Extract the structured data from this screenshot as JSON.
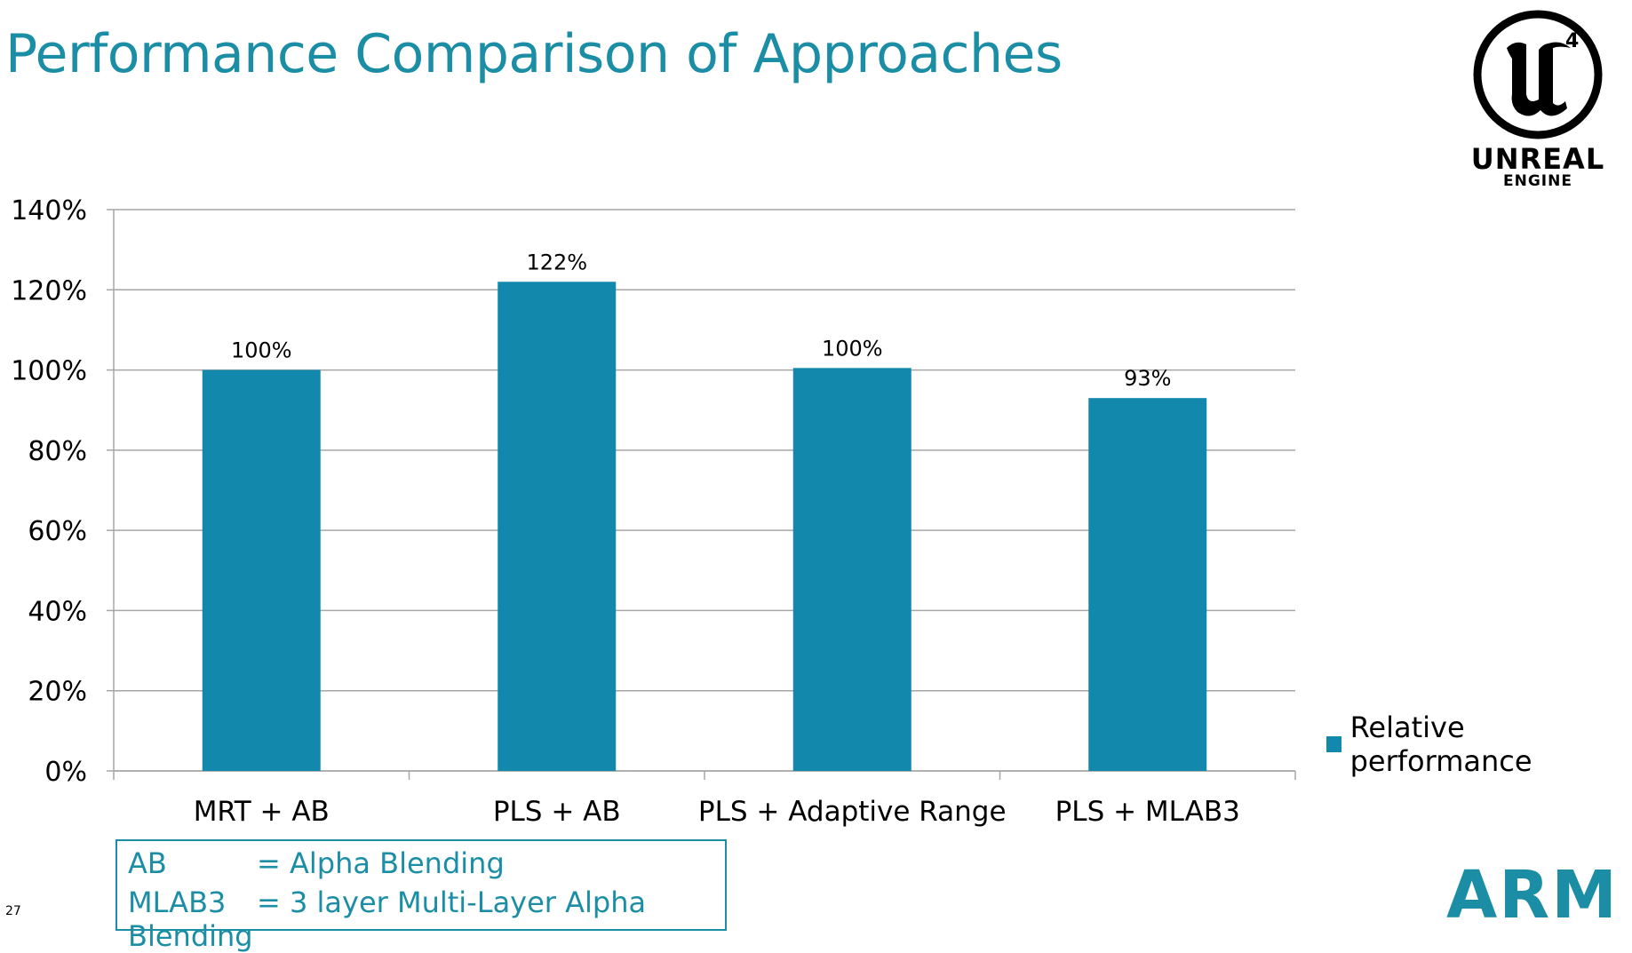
{
  "slide": {
    "title": "Performance Comparison of Approaches",
    "page_number": "27"
  },
  "logos": {
    "unreal_line1": "UNREAL",
    "unreal_line2": "ENGINE",
    "unreal_superscript": "4",
    "arm": "ARM"
  },
  "legend": {
    "label": "Relative performance",
    "color": "#1289ac"
  },
  "abbreviations": [
    {
      "key": "AB",
      "value": "= Alpha Blending"
    },
    {
      "key": "MLAB3",
      "value": "= 3 layer Multi-Layer Alpha Blending"
    }
  ],
  "chart_data": {
    "type": "bar",
    "title": "",
    "categories": [
      "MRT + AB",
      "PLS + AB",
      "PLS + Adaptive Range",
      "PLS + MLAB3"
    ],
    "series": [
      {
        "name": "Relative performance",
        "values": [
          100,
          122,
          100.5,
          93
        ],
        "labels": [
          "100%",
          "122%",
          "100%",
          "93%"
        ],
        "color": "#1289ac"
      }
    ],
    "ylim": [
      0,
      140
    ],
    "yticks": [
      0,
      20,
      40,
      60,
      80,
      100,
      120,
      140
    ],
    "ytick_labels": [
      "0%",
      "20%",
      "40%",
      "60%",
      "80%",
      "100%",
      "120%",
      "140%"
    ],
    "grid": true,
    "legend_position": "right",
    "xlabel": "",
    "ylabel": ""
  }
}
